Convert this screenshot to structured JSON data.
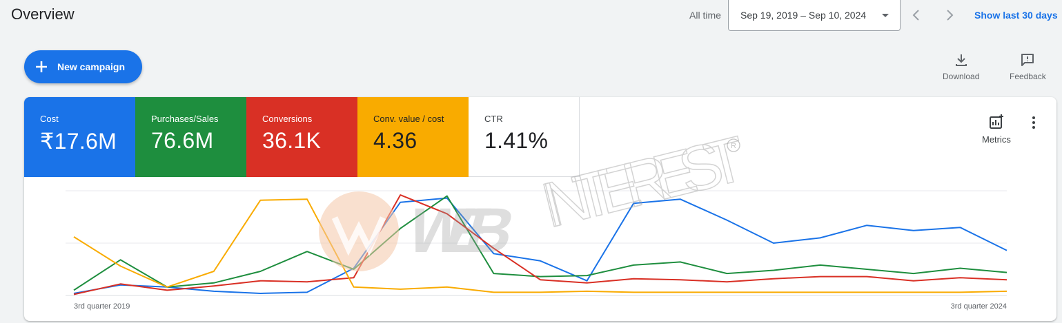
{
  "header": {
    "title": "Overview",
    "all_time_label": "All time",
    "date_range": "Sep 19, 2019 – Sep 10, 2024",
    "show_last_label": "Show last 30 days"
  },
  "toolbar": {
    "new_campaign_label": "New campaign",
    "download_label": "Download",
    "feedback_label": "Feedback"
  },
  "scorecards": [
    {
      "label": "Cost",
      "value": "₹17.6M",
      "color": "#1a73e8"
    },
    {
      "label": "Purchases/Sales",
      "value": "76.6M",
      "color": "#1e8e3e"
    },
    {
      "label": "Conversions",
      "value": "36.1K",
      "color": "#d93025"
    },
    {
      "label": "Conv. value / cost",
      "value": "4.36",
      "color": "#f9ab00"
    },
    {
      "label": "CTR",
      "value": "1.41%",
      "color": "#ffffff"
    }
  ],
  "metrics_label": "Metrics",
  "watermark_text": "WEB INTEREST",
  "chart_data": {
    "type": "line",
    "grid": true,
    "x_start_label": "3rd quarter 2019",
    "x_end_label": "3rd quarter 2024",
    "ylim": [
      0,
      100
    ],
    "series": [
      {
        "name": "Cost",
        "color": "#1a73e8",
        "values": [
          2,
          10,
          8,
          4,
          2,
          3,
          26,
          89,
          93,
          40,
          33,
          14,
          88,
          92,
          72,
          50,
          55,
          67,
          62,
          65,
          43
        ]
      },
      {
        "name": "Purchases/Sales",
        "color": "#1e8e3e",
        "values": [
          5,
          34,
          8,
          12,
          23,
          42,
          25,
          64,
          95,
          21,
          18,
          19,
          29,
          32,
          21,
          24,
          29,
          25,
          21,
          26,
          22
        ]
      },
      {
        "name": "Conversions",
        "color": "#d93025",
        "values": [
          1,
          11,
          5,
          9,
          14,
          13,
          17,
          96,
          78,
          45,
          15,
          12,
          16,
          15,
          13,
          16,
          18,
          18,
          14,
          17,
          15
        ]
      },
      {
        "name": "Conv. value / cost",
        "color": "#f9ab00",
        "values": [
          56,
          28,
          8,
          23,
          91,
          92,
          8,
          6,
          8,
          3,
          3,
          4,
          3,
          3,
          3,
          3,
          3,
          3,
          3,
          3,
          4
        ]
      }
    ]
  }
}
